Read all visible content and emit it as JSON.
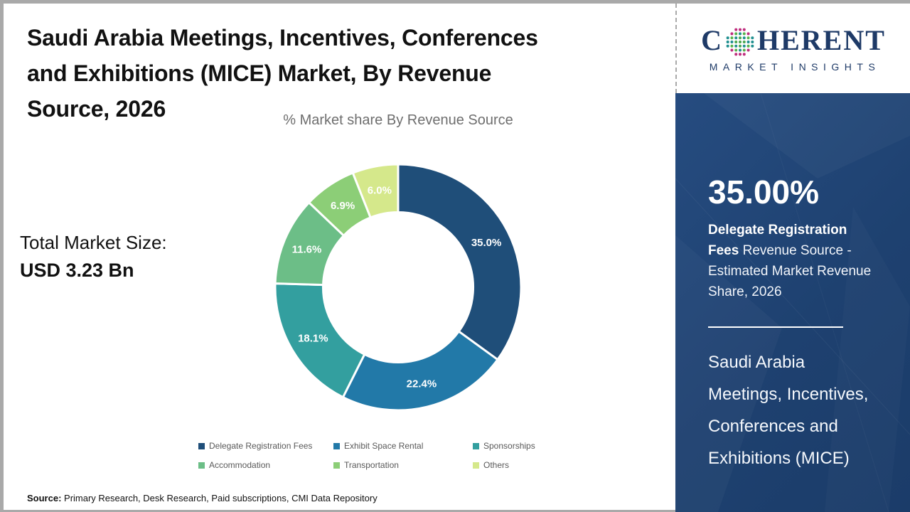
{
  "header": {
    "title_lines": [
      "Saudi Arabia Meetings, Incentives, Conferences",
      "and Exhibitions (MICE) Market, By Revenue",
      "Source, 2026"
    ]
  },
  "market_size": {
    "label": "Total Market Size:",
    "value": "USD 3.23 Bn"
  },
  "chart_data": {
    "type": "pie",
    "subtype": "donut",
    "title": "% Market share By Revenue Source",
    "categories": [
      "Delegate Registration Fees",
      "Exhibit Space Rental",
      "Sponsorships",
      "Accommodation",
      "Transportation",
      "Others"
    ],
    "values": [
      35.0,
      22.4,
      18.1,
      11.6,
      6.9,
      6.0
    ],
    "labels": [
      "35.0%",
      "22.4%",
      "18.1%",
      "11.6%",
      "6.9%",
      "6.0%"
    ],
    "colors": [
      "#1F4E79",
      "#2279A8",
      "#339F9F",
      "#6CBE87",
      "#8CCE77",
      "#D5E88B"
    ],
    "start_angle_deg": 0,
    "direction": "clockwise",
    "donut_hole_ratio": 0.61,
    "legend_position": "bottom",
    "label_color": "#FFFFFF"
  },
  "source": {
    "label": "Source:",
    "text": " Primary Research, Desk Research, Paid subscriptions, CMI Data Repository"
  },
  "logo": {
    "prefix": "C",
    "suffix": "HERENT",
    "subtitle": "MARKET INSIGHTS"
  },
  "sidebar": {
    "stat_value": "35.00%",
    "stat_desc_bold": "Delegate Registration Fees",
    "stat_desc_rest": " Revenue Source - Estimated Market Revenue Share, 2026",
    "footer_text": "Saudi Arabia Meetings, Incentives, Conferences and Exhibitions (MICE)",
    "panel_color": "#1E4170"
  }
}
